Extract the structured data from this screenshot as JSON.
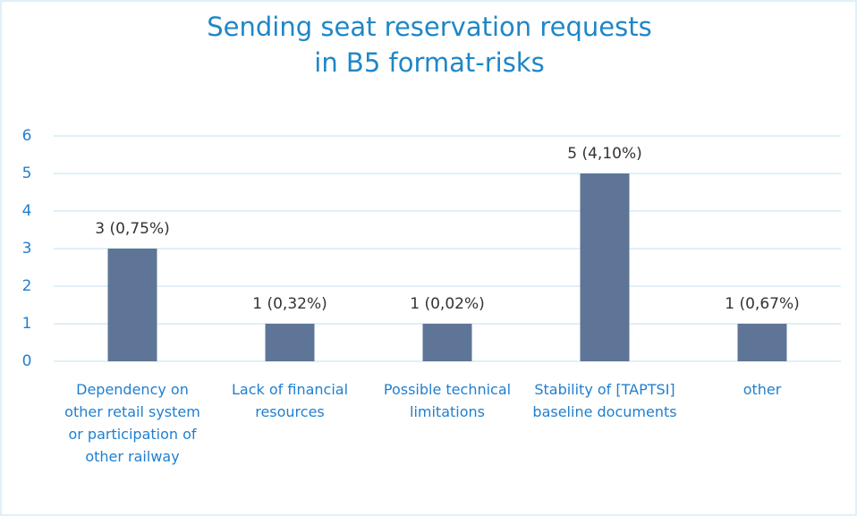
{
  "chart_data": {
    "type": "bar",
    "title": "Sending seat reservation requests in B5 format-risks",
    "categories": [
      "Dependency on other retail system or participation of other railway",
      "Lack of financial resources",
      "Possible technical limitations",
      "Stability of [TAPTSI] baseline documents",
      "other"
    ],
    "values": [
      3,
      1,
      1,
      5,
      1
    ],
    "value_labels": [
      "3 (0,75%)",
      "1 (0,32%)",
      "1 (0,02%)",
      "5 (4,10%)",
      "1 (0,67%)"
    ],
    "color": "#5e7597",
    "ylim": [
      0,
      6
    ],
    "yticks": [
      0,
      1,
      2,
      3,
      4,
      5,
      6
    ],
    "grid": true
  }
}
